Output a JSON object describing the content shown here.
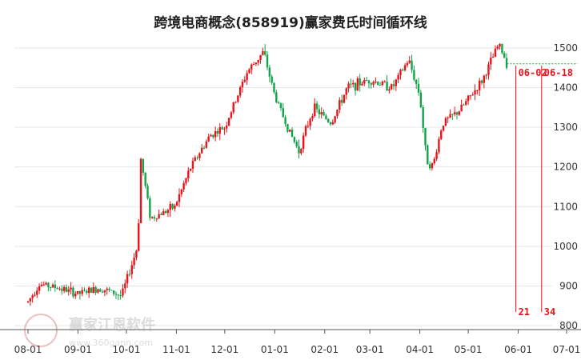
{
  "chart_data": {
    "type": "candlestick",
    "title": "跨境电商概念(858919)赢家费氏时间循环线",
    "xlabel": "",
    "ylabel": "",
    "ylim": [
      790,
      1520
    ],
    "y_ticks": [
      800,
      900,
      1000,
      1100,
      1200,
      1300,
      1400,
      1500
    ],
    "x_ticks": [
      "08-01",
      "09-01",
      "10-01",
      "11-01",
      "12-01",
      "01-01",
      "02-01",
      "03-01",
      "04-01",
      "05-01",
      "06-01",
      "07-01"
    ],
    "grid": true,
    "colors": {
      "up": "#e8141a",
      "down": "#15a34a",
      "cycle_line": "#e8141a",
      "grid": "#e6e6e6"
    },
    "price_path": [
      [
        "08-01",
        860
      ],
      [
        "08-08",
        905
      ],
      [
        "08-20",
        895
      ],
      [
        "09-01",
        880
      ],
      [
        "09-15",
        895
      ],
      [
        "09-28",
        875
      ],
      [
        "10-08",
        1000
      ],
      [
        "10-10",
        1220
      ],
      [
        "10-16",
        1070
      ],
      [
        "10-31",
        1100
      ],
      [
        "11-10",
        1200
      ],
      [
        "11-22",
        1280
      ],
      [
        "12-01",
        1300
      ],
      [
        "12-15",
        1440
      ],
      [
        "12-25",
        1490
      ],
      [
        "01-01",
        1380
      ],
      [
        "01-10",
        1290
      ],
      [
        "01-16",
        1240
      ],
      [
        "01-25",
        1350
      ],
      [
        "02-05",
        1310
      ],
      [
        "02-15",
        1400
      ],
      [
        "03-01",
        1420
      ],
      [
        "03-15",
        1400
      ],
      [
        "03-25",
        1470
      ],
      [
        "04-01",
        1380
      ],
      [
        "04-05",
        1220
      ],
      [
        "04-09",
        1200
      ],
      [
        "04-15",
        1310
      ],
      [
        "04-25",
        1340
      ],
      [
        "05-01",
        1370
      ],
      [
        "05-10",
        1420
      ],
      [
        "05-20",
        1510
      ],
      [
        "05-25",
        1460
      ]
    ],
    "last_price": 1460,
    "cycle_lines": [
      {
        "date": "06-02",
        "bar_count": "21"
      },
      {
        "date": "06-18",
        "bar_count": "34"
      }
    ]
  },
  "watermark": {
    "name": "赢家江恩软件",
    "url": "www.360gann.com"
  }
}
